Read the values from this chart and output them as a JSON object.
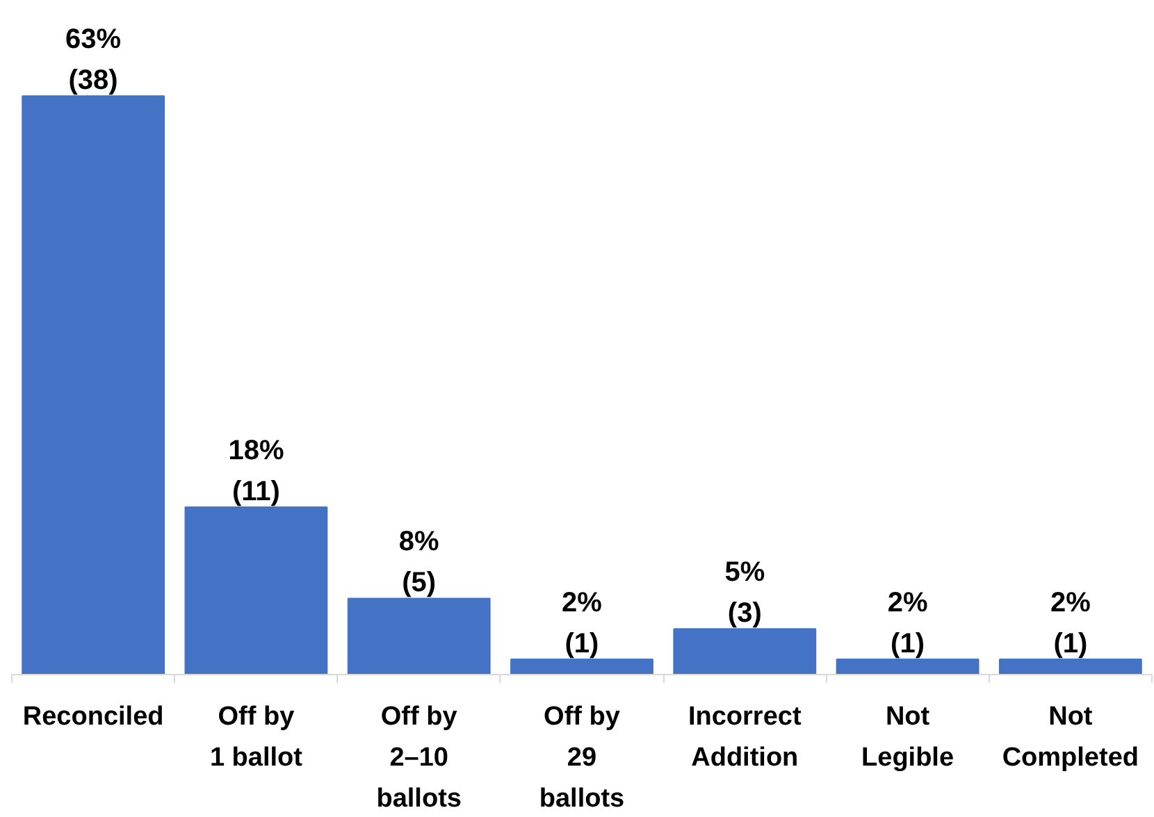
{
  "chart_data": {
    "type": "bar",
    "categories": [
      "Reconciled",
      "Off by\n1 ballot",
      "Off by\n2–10\nballots",
      "Off by\n29\nballots",
      "Incorrect\nAddition",
      "Not\nLegible",
      "Not\nCompleted"
    ],
    "values": [
      38,
      11,
      5,
      1,
      3,
      1,
      1
    ],
    "value_labels": [
      "63%\n(38)",
      "18%\n(11)",
      "8%\n(5)",
      "2%\n(1)",
      "5%\n(3)",
      "2%\n(1)",
      "2%\n(1)"
    ],
    "color": "#4472c4",
    "grid": false
  }
}
